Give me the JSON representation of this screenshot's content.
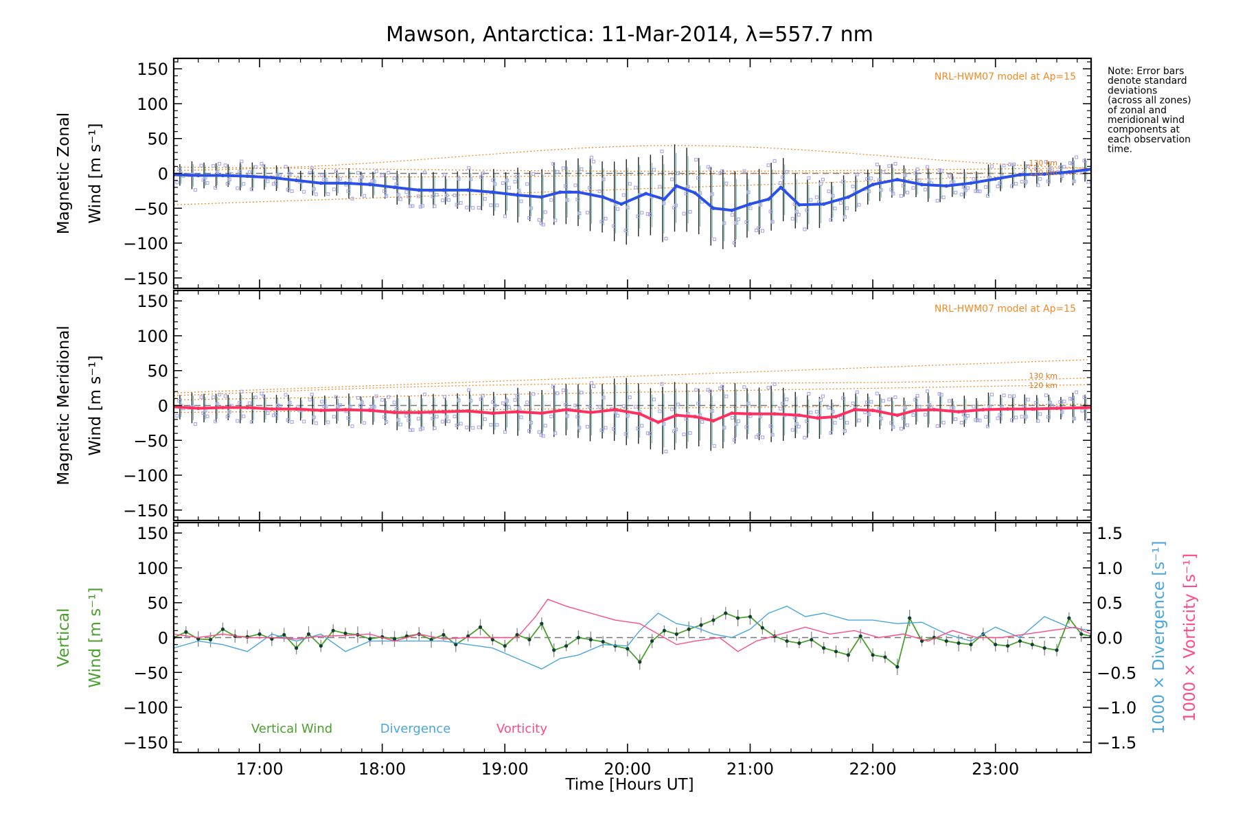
{
  "title": "Mawson, Antarctica: 11-Mar-2014, λ=557.7 nm",
  "note": [
    "Note: Error bars",
    "denote standard",
    "deviations",
    "(across all zones)",
    "of zonal and",
    "meridional wind",
    "components at",
    "each observation",
    "time."
  ],
  "x_axis": {
    "label": "Time [Hours UT]",
    "ticks": [
      17,
      18,
      19,
      20,
      21,
      22,
      23
    ],
    "tick_labels": [
      "17:00",
      "18:00",
      "19:00",
      "20:00",
      "21:00",
      "22:00",
      "23:00"
    ],
    "range": [
      16.3,
      23.78
    ]
  },
  "colors": {
    "zonal": "#2a50e8",
    "meridional": "#ff3060",
    "vertical": "#4aa02c",
    "divergence": "#4aa6dc",
    "vorticity": "#ff4a8a",
    "model": "#f08a24",
    "zone_markers": "#a8a8e8"
  },
  "chart_data": [
    {
      "type": "line",
      "panel": "zonal",
      "ylabel_line1": "Magnetic Zonal",
      "ylabel_line2": "Wind [m s⁻¹]",
      "model_label": "NRL-HWM07 model at Ap=15",
      "altitude_labels": [
        "130 km",
        "120 km"
      ],
      "ylim": [
        -165,
        165
      ],
      "yticks": [
        -150,
        -100,
        -50,
        0,
        50,
        100,
        150
      ],
      "series": [
        {
          "name": "Zonal wind",
          "x": [
            16.3,
            16.5,
            16.7,
            16.9,
            17.1,
            17.3,
            17.5,
            17.7,
            17.9,
            18.1,
            18.3,
            18.5,
            18.7,
            18.9,
            19.1,
            19.3,
            19.45,
            19.6,
            19.8,
            19.95,
            20.15,
            20.3,
            20.4,
            20.55,
            20.7,
            20.85,
            21.0,
            21.15,
            21.25,
            21.4,
            21.6,
            21.8,
            22.0,
            22.2,
            22.4,
            22.6,
            22.8,
            23.0,
            23.2,
            23.4,
            23.6,
            23.78
          ],
          "y": [
            -2,
            -3,
            -3,
            -4,
            -6,
            -10,
            -14,
            -14,
            -16,
            -20,
            -24,
            -24,
            -24,
            -27,
            -31,
            -34,
            -27,
            -27,
            -34,
            -44,
            -29,
            -37,
            -18,
            -28,
            -50,
            -53,
            -44,
            -37,
            -20,
            -45,
            -44,
            -34,
            -16,
            -9,
            -16,
            -18,
            -14,
            -8,
            -2,
            -1,
            2,
            6
          ]
        }
      ]
    },
    {
      "type": "line",
      "panel": "meridional",
      "ylabel_line1": "Magnetic Meridional",
      "ylabel_line2": "Wind [m s⁻¹]",
      "model_label": "NRL-HWM07 model at Ap=15",
      "altitude_labels": [
        "130 km",
        "120 km"
      ],
      "ylim": [
        -165,
        165
      ],
      "yticks": [
        -150,
        -100,
        -50,
        0,
        50,
        100,
        150
      ],
      "series": [
        {
          "name": "Meridional wind",
          "x": [
            16.3,
            16.5,
            16.7,
            16.9,
            17.1,
            17.3,
            17.5,
            17.7,
            17.9,
            18.1,
            18.3,
            18.5,
            18.7,
            18.9,
            19.1,
            19.3,
            19.5,
            19.7,
            19.9,
            20.1,
            20.25,
            20.4,
            20.55,
            20.7,
            20.85,
            21.0,
            21.2,
            21.4,
            21.55,
            21.7,
            21.85,
            22.0,
            22.2,
            22.35,
            22.5,
            22.7,
            22.9,
            23.1,
            23.3,
            23.5,
            23.78
          ],
          "y": [
            -2,
            -4,
            -3,
            -3,
            -5,
            -5,
            -7,
            -6,
            -7,
            -10,
            -10,
            -9,
            -8,
            -11,
            -9,
            -11,
            -6,
            -10,
            -6,
            -12,
            -24,
            -14,
            -16,
            -22,
            -11,
            -12,
            -12,
            -14,
            -18,
            -16,
            -6,
            -7,
            -14,
            -7,
            -6,
            -9,
            -6,
            -5,
            -5,
            -4,
            -3
          ]
        }
      ]
    },
    {
      "type": "line",
      "panel": "vertical",
      "ylabel_line1": "Vertical",
      "ylabel_line2": "Wind [m s⁻¹]",
      "right_axis_label_1": "1000 × Divergence [s⁻¹]",
      "right_axis_label_2": "1000 × Vorticity [s⁻¹]",
      "ylim": [
        -165,
        165
      ],
      "yticks": [
        -150,
        -100,
        -50,
        0,
        50,
        100,
        150
      ],
      "y2lim": [
        -1.65,
        1.65
      ],
      "y2ticks": [
        -1.5,
        -1.0,
        -0.5,
        0.0,
        0.5,
        1.0,
        1.5
      ],
      "y2tick_labels": [
        "−1.5",
        "−1.0",
        "−0.5",
        "0.0",
        "0.5",
        "1.0",
        "1.5"
      ],
      "legend": [
        "Vertical Wind",
        "Divergence",
        "Vorticity"
      ],
      "series": [
        {
          "name": "Vertical Wind",
          "axis": "left",
          "x": [
            16.3,
            16.4,
            16.5,
            16.6,
            16.7,
            16.8,
            16.9,
            17.0,
            17.1,
            17.2,
            17.3,
            17.4,
            17.5,
            17.6,
            17.7,
            17.8,
            17.9,
            18.0,
            18.1,
            18.2,
            18.3,
            18.4,
            18.5,
            18.6,
            18.7,
            18.8,
            18.9,
            19.0,
            19.1,
            19.2,
            19.3,
            19.4,
            19.5,
            19.6,
            19.7,
            19.8,
            19.9,
            20.0,
            20.1,
            20.2,
            20.3,
            20.4,
            20.5,
            20.6,
            20.7,
            20.8,
            20.9,
            21.0,
            21.1,
            21.2,
            21.3,
            21.4,
            21.5,
            21.6,
            21.7,
            21.8,
            21.9,
            22.0,
            22.1,
            22.2,
            22.3,
            22.4,
            22.5,
            22.6,
            22.7,
            22.8,
            22.9,
            23.0,
            23.1,
            23.2,
            23.3,
            23.4,
            23.5,
            23.6,
            23.7,
            23.78
          ],
          "y": [
            0,
            8,
            -2,
            -3,
            12,
            2,
            1,
            5,
            -2,
            4,
            -15,
            5,
            -12,
            10,
            6,
            4,
            -2,
            1,
            -2,
            2,
            5,
            -3,
            4,
            -10,
            2,
            15,
            -3,
            -12,
            4,
            -3,
            20,
            -18,
            -12,
            0,
            -3,
            -6,
            -12,
            -16,
            -35,
            -5,
            10,
            5,
            12,
            18,
            25,
            35,
            28,
            30,
            14,
            2,
            -5,
            -8,
            -3,
            -15,
            -20,
            -25,
            2,
            -25,
            -28,
            -42,
            28,
            -5,
            0,
            -5,
            -8,
            -10,
            5,
            -10,
            -12,
            -5,
            -10,
            -15,
            -18,
            28,
            5,
            2
          ]
        },
        {
          "name": "Divergence",
          "axis": "right",
          "x": [
            16.3,
            16.5,
            16.7,
            16.9,
            17.1,
            17.3,
            17.5,
            17.7,
            17.9,
            18.1,
            18.3,
            18.5,
            18.7,
            18.9,
            19.1,
            19.3,
            19.45,
            19.6,
            19.8,
            20.0,
            20.1,
            20.25,
            20.4,
            20.55,
            20.7,
            20.85,
            21.0,
            21.15,
            21.3,
            21.45,
            21.6,
            21.8,
            22.0,
            22.2,
            22.4,
            22.6,
            22.8,
            23.0,
            23.2,
            23.4,
            23.6,
            23.78
          ],
          "y": [
            -0.15,
            -0.05,
            -0.1,
            -0.2,
            0.05,
            -0.05,
            0.05,
            -0.2,
            -0.05,
            -0.05,
            -0.05,
            -0.05,
            -0.1,
            -0.15,
            -0.3,
            -0.45,
            -0.3,
            -0.25,
            -0.1,
            -0.12,
            0.1,
            0.35,
            0.2,
            0.15,
            0.05,
            0.0,
            0.12,
            0.35,
            0.45,
            0.3,
            0.35,
            0.25,
            0.25,
            0.2,
            0.22,
            0.05,
            -0.05,
            0.15,
            0.0,
            0.3,
            0.15,
            0.1
          ]
        },
        {
          "name": "Vorticity",
          "axis": "right",
          "x": [
            16.3,
            16.5,
            16.7,
            16.9,
            17.1,
            17.3,
            17.5,
            17.7,
            17.9,
            18.1,
            18.3,
            18.5,
            18.7,
            18.9,
            19.1,
            19.25,
            19.35,
            19.5,
            19.7,
            19.9,
            20.1,
            20.25,
            20.4,
            20.55,
            20.75,
            20.9,
            21.05,
            21.25,
            21.45,
            21.65,
            21.85,
            22.05,
            22.25,
            22.45,
            22.65,
            22.85,
            23.05,
            23.25,
            23.45,
            23.65,
            23.78
          ],
          "y": [
            0.05,
            0.0,
            0.05,
            0.0,
            0.0,
            -0.02,
            0.02,
            0.03,
            0.05,
            -0.05,
            0.05,
            -0.02,
            0.0,
            0.0,
            0.0,
            0.3,
            0.55,
            0.45,
            0.35,
            0.25,
            0.2,
            0.05,
            -0.1,
            -0.05,
            0.0,
            -0.2,
            -0.05,
            0.05,
            0.15,
            0.05,
            0.1,
            0.0,
            0.05,
            -0.05,
            0.1,
            0.0,
            0.0,
            0.05,
            0.1,
            0.15,
            0.05
          ]
        }
      ]
    }
  ]
}
